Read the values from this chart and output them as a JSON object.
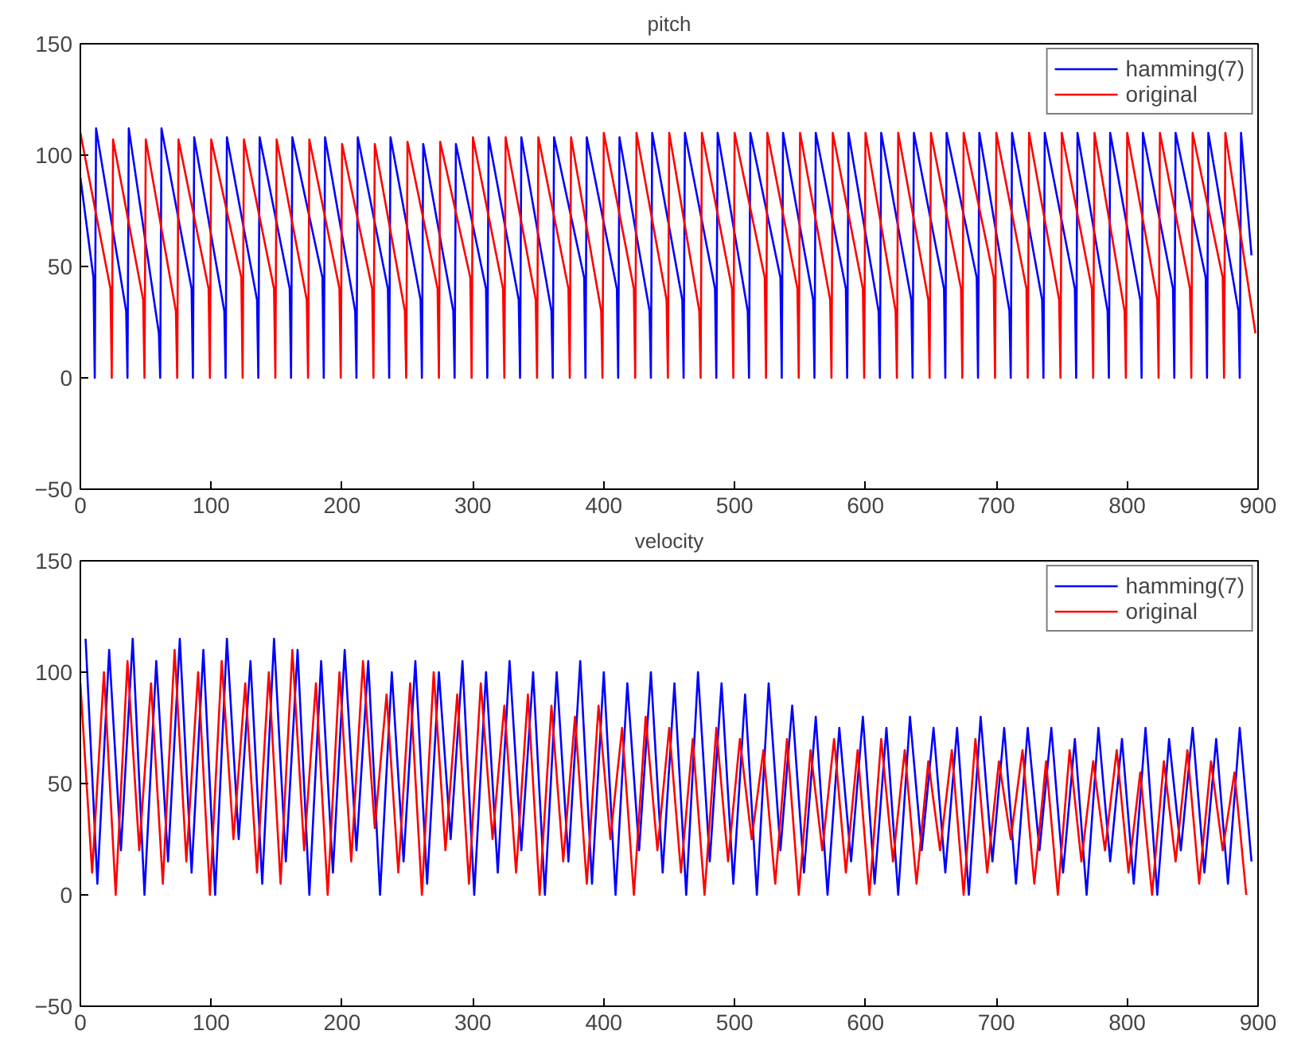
{
  "chart_data": [
    {
      "type": "line",
      "title": "pitch",
      "xlim": [
        0,
        900
      ],
      "ylim": [
        -50,
        150
      ],
      "xticks": [
        0,
        100,
        200,
        300,
        400,
        500,
        600,
        700,
        800,
        900
      ],
      "yticks": [
        -50,
        0,
        50,
        100,
        150
      ],
      "grid": false,
      "legend": "top right",
      "series": [
        {
          "name": "hamming(7)",
          "color": "#0000ff",
          "x": [
            0,
            10,
            11,
            12,
            35,
            36,
            37,
            60,
            61,
            62,
            85,
            86,
            87,
            110,
            111,
            112,
            135,
            136,
            137,
            160,
            161,
            162,
            185,
            186,
            187,
            210,
            211,
            212,
            235,
            236,
            237,
            260,
            261,
            262,
            285,
            286,
            287,
            310,
            311,
            312,
            335,
            336,
            337,
            360,
            361,
            362,
            385,
            386,
            387,
            410,
            411,
            412,
            435,
            436,
            437,
            460,
            461,
            462,
            485,
            486,
            487,
            510,
            511,
            512,
            535,
            536,
            537,
            560,
            561,
            562,
            585,
            586,
            587,
            610,
            611,
            612,
            635,
            636,
            637,
            660,
            661,
            662,
            685,
            686,
            687,
            710,
            711,
            712,
            735,
            736,
            737,
            760,
            761,
            762,
            785,
            786,
            787,
            810,
            811,
            812,
            835,
            836,
            837,
            860,
            861,
            862,
            885,
            886,
            887,
            895
          ],
          "values": [
            90,
            45,
            0,
            112,
            30,
            0,
            112,
            20,
            0,
            112,
            40,
            0,
            108,
            30,
            0,
            108,
            35,
            0,
            108,
            40,
            0,
            108,
            45,
            0,
            108,
            30,
            0,
            108,
            40,
            0,
            108,
            35,
            0,
            105,
            30,
            0,
            105,
            40,
            0,
            108,
            35,
            0,
            108,
            30,
            0,
            108,
            45,
            0,
            108,
            40,
            0,
            108,
            30,
            0,
            110,
            35,
            0,
            110,
            40,
            0,
            110,
            30,
            0,
            110,
            45,
            0,
            110,
            35,
            0,
            110,
            40,
            0,
            110,
            30,
            0,
            110,
            35,
            0,
            110,
            40,
            0,
            110,
            45,
            0,
            110,
            30,
            0,
            110,
            35,
            0,
            110,
            40,
            0,
            110,
            30,
            0,
            110,
            35,
            0,
            110,
            40,
            0,
            110,
            45,
            0,
            110,
            30,
            0,
            110,
            55
          ]
        },
        {
          "name": "original",
          "color": "#ff0000",
          "x": [
            0,
            23,
            24,
            25,
            48,
            49,
            50,
            73,
            74,
            75,
            98,
            99,
            100,
            123,
            124,
            125,
            148,
            149,
            150,
            173,
            174,
            175,
            198,
            199,
            200,
            223,
            224,
            225,
            248,
            249,
            250,
            273,
            274,
            275,
            298,
            299,
            300,
            323,
            324,
            325,
            348,
            349,
            350,
            373,
            374,
            375,
            398,
            399,
            400,
            423,
            424,
            425,
            448,
            449,
            450,
            473,
            474,
            475,
            498,
            499,
            500,
            523,
            524,
            525,
            548,
            549,
            550,
            573,
            574,
            575,
            598,
            599,
            600,
            623,
            624,
            625,
            648,
            649,
            650,
            673,
            674,
            675,
            698,
            699,
            700,
            723,
            724,
            725,
            748,
            749,
            750,
            773,
            774,
            775,
            798,
            799,
            800,
            823,
            824,
            825,
            848,
            849,
            850,
            873,
            874,
            875,
            898
          ],
          "values": [
            110,
            40,
            0,
            107,
            35,
            0,
            107,
            30,
            0,
            107,
            40,
            0,
            107,
            45,
            0,
            107,
            40,
            0,
            107,
            35,
            0,
            107,
            40,
            0,
            105,
            40,
            0,
            105,
            30,
            0,
            106,
            40,
            0,
            106,
            45,
            0,
            108,
            40,
            0,
            108,
            35,
            0,
            108,
            40,
            0,
            108,
            30,
            0,
            110,
            40,
            0,
            110,
            35,
            0,
            110,
            30,
            0,
            110,
            40,
            0,
            110,
            45,
            0,
            110,
            40,
            0,
            110,
            35,
            0,
            110,
            40,
            0,
            110,
            30,
            0,
            110,
            35,
            0,
            110,
            40,
            0,
            110,
            45,
            0,
            110,
            40,
            0,
            110,
            35,
            0,
            110,
            40,
            0,
            110,
            30,
            0,
            110,
            35,
            0,
            110,
            40,
            0,
            110,
            45,
            0,
            110,
            20
          ]
        }
      ]
    },
    {
      "type": "line",
      "title": "velocity",
      "xlim": [
        0,
        900
      ],
      "ylim": [
        -50,
        150
      ],
      "xticks": [
        0,
        100,
        200,
        300,
        400,
        500,
        600,
        700,
        800,
        900
      ],
      "yticks": [
        -50,
        0,
        50,
        100,
        150
      ],
      "grid": false,
      "legend": "top right",
      "series": [
        {
          "name": "hamming(7)",
          "color": "#0000ff",
          "x": [
            4,
            13,
            22,
            31,
            40,
            49,
            58,
            67,
            76,
            85,
            94,
            103,
            112,
            121,
            130,
            139,
            148,
            157,
            166,
            175,
            184,
            193,
            202,
            211,
            220,
            229,
            238,
            247,
            256,
            265,
            274,
            283,
            292,
            301,
            310,
            319,
            328,
            337,
            346,
            355,
            364,
            373,
            382,
            391,
            400,
            409,
            418,
            427,
            436,
            445,
            454,
            463,
            472,
            481,
            490,
            499,
            508,
            517,
            526,
            535,
            544,
            553,
            562,
            571,
            580,
            589,
            598,
            607,
            616,
            625,
            634,
            643,
            652,
            661,
            670,
            679,
            688,
            697,
            706,
            715,
            724,
            733,
            742,
            751,
            760,
            769,
            778,
            787,
            796,
            805,
            814,
            823,
            832,
            841,
            850,
            859,
            868,
            877,
            886,
            895
          ],
          "values": [
            115,
            5,
            110,
            20,
            115,
            0,
            105,
            15,
            115,
            10,
            110,
            0,
            115,
            25,
            105,
            5,
            115,
            15,
            110,
            0,
            105,
            10,
            110,
            20,
            105,
            0,
            100,
            15,
            105,
            5,
            100,
            25,
            105,
            0,
            100,
            10,
            105,
            20,
            100,
            0,
            100,
            15,
            105,
            5,
            100,
            0,
            95,
            20,
            100,
            10,
            95,
            0,
            100,
            15,
            95,
            5,
            90,
            0,
            95,
            20,
            85,
            10,
            80,
            0,
            75,
            15,
            80,
            5,
            75,
            0,
            80,
            20,
            75,
            10,
            75,
            0,
            80,
            15,
            75,
            5,
            75,
            20,
            75,
            10,
            70,
            0,
            75,
            15,
            70,
            5,
            75,
            0,
            70,
            20,
            75,
            10,
            70,
            5,
            75,
            15
          ]
        },
        {
          "name": "original",
          "color": "#ff0000",
          "x": [
            0,
            9,
            18,
            27,
            36,
            45,
            54,
            63,
            72,
            81,
            90,
            99,
            108,
            117,
            126,
            135,
            144,
            153,
            162,
            171,
            180,
            189,
            198,
            207,
            216,
            225,
            234,
            243,
            252,
            261,
            270,
            279,
            288,
            297,
            306,
            315,
            324,
            333,
            342,
            351,
            360,
            369,
            378,
            387,
            396,
            405,
            414,
            423,
            432,
            441,
            450,
            459,
            468,
            477,
            486,
            495,
            504,
            513,
            522,
            531,
            540,
            549,
            558,
            567,
            576,
            585,
            594,
            603,
            612,
            621,
            630,
            639,
            648,
            657,
            666,
            675,
            684,
            693,
            702,
            711,
            720,
            729,
            738,
            747,
            756,
            765,
            774,
            783,
            792,
            801,
            810,
            819,
            828,
            837,
            846,
            855,
            864,
            873,
            882,
            891
          ],
          "values": [
            95,
            10,
            100,
            0,
            105,
            20,
            95,
            5,
            110,
            15,
            100,
            0,
            105,
            25,
            95,
            10,
            100,
            5,
            110,
            20,
            95,
            0,
            100,
            15,
            105,
            30,
            90,
            10,
            95,
            0,
            100,
            20,
            90,
            5,
            95,
            25,
            85,
            10,
            90,
            0,
            85,
            15,
            80,
            5,
            85,
            25,
            75,
            0,
            80,
            20,
            75,
            10,
            70,
            0,
            75,
            15,
            70,
            25,
            65,
            5,
            70,
            0,
            65,
            20,
            70,
            10,
            65,
            0,
            70,
            15,
            65,
            5,
            60,
            20,
            65,
            0,
            70,
            10,
            60,
            25,
            65,
            5,
            60,
            0,
            65,
            15,
            60,
            20,
            65,
            10,
            55,
            0,
            60,
            15,
            65,
            5,
            60,
            20,
            55,
            0
          ]
        }
      ]
    }
  ]
}
